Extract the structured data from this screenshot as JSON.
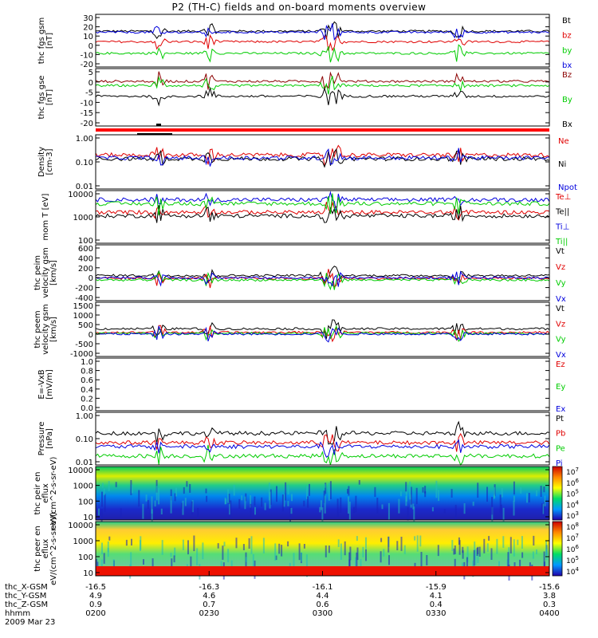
{
  "title": "P2 (TH-C) fields and on-board moments overview",
  "date_label": "2009 Mar 23",
  "colors": {
    "black": "#000000",
    "red": "#e00000",
    "green": "#00cc00",
    "blue": "#0000dd",
    "darkred": "#8b0000"
  },
  "footer": {
    "row_labels": [
      "thc_X-GSM",
      "thc_Y-GSM",
      "thc_Z-GSM",
      "hhmm"
    ],
    "x_gsm": [
      "-16.5",
      "-16.3",
      "-16.1",
      "-15.9",
      "-15.6"
    ],
    "y_gsm": [
      "4.9",
      "4.6",
      "4.4",
      "4.1",
      "3.8"
    ],
    "z_gsm": [
      "0.9",
      "0.7",
      "0.6",
      "0.4",
      "0.3"
    ],
    "hhmm": [
      "0200",
      "0230",
      "0300",
      "0330",
      "0400"
    ]
  },
  "chart_data": [
    {
      "type": "line",
      "ylabel": "thc fgs gsm [nT]",
      "ytick_labels": [
        "30",
        "20",
        "10",
        "0",
        "-10",
        "-20"
      ],
      "ylim": [
        -20,
        30
      ],
      "series": [
        {
          "name": "Bt",
          "color": "#000000",
          "level": 14
        },
        {
          "name": "bz",
          "color": "#e00000",
          "level": 4
        },
        {
          "name": "by",
          "color": "#00cc00",
          "level": -7
        },
        {
          "name": "bx",
          "color": "#0000dd",
          "level": 13
        }
      ]
    },
    {
      "type": "line",
      "ylabel": "thc fgs gse [nT]",
      "ytick_labels": [
        "5",
        "0",
        "-5",
        "-10",
        "-15",
        "-20"
      ],
      "ylim": [
        -22,
        5
      ],
      "series": [
        {
          "name": "Bz",
          "color": "#8b0000",
          "level": -1
        },
        {
          "name": "By",
          "color": "#00cc00",
          "level": -3
        },
        {
          "name": "Bx",
          "color": "#000000",
          "level": -8
        }
      ]
    },
    {
      "type": "line",
      "ylabel": "Density [cm-3]",
      "log": true,
      "ytick_labels": [
        "1.00",
        "0.10",
        "0.01"
      ],
      "ylim": [
        0.01,
        1.0
      ],
      "series": [
        {
          "name": "Ne",
          "color": "#e00000",
          "level": 0.18
        },
        {
          "name": "Ni",
          "color": "#000000",
          "level": 0.13
        },
        {
          "name": "Npot",
          "color": "#0000dd",
          "level": 0.14
        }
      ]
    },
    {
      "type": "line",
      "ylabel": "mom T [eV]",
      "log": true,
      "ytick_labels": [
        "10000",
        "1000",
        "100"
      ],
      "ylim": [
        100,
        10000
      ],
      "series": [
        {
          "name": "Te⊥",
          "color": "#e00000",
          "level": 1500
        },
        {
          "name": "Te||",
          "color": "#000000",
          "level": 1100
        },
        {
          "name": "Ti⊥",
          "color": "#0000dd",
          "level": 4500
        },
        {
          "name": "Ti||",
          "color": "#00cc00",
          "level": 3200
        }
      ]
    },
    {
      "type": "line",
      "ylabel": "thc peim velocity gsm [km/s]",
      "ytick_labels": [
        "600",
        "400",
        "200",
        "0",
        "-200",
        "-400"
      ],
      "ylim": [
        -400,
        600
      ],
      "series": [
        {
          "name": "Vt",
          "color": "#000000",
          "level": 50
        },
        {
          "name": "Vz",
          "color": "#e00000",
          "level": 0
        },
        {
          "name": "Vy",
          "color": "#00cc00",
          "level": -30
        },
        {
          "name": "Vx",
          "color": "#0000dd",
          "level": 10
        }
      ]
    },
    {
      "type": "line",
      "ylabel": "thc peem velocity gsm [km/s]",
      "ytick_labels": [
        "1500",
        "1000",
        "500",
        "0",
        "-500",
        "-1000"
      ],
      "ylim": [
        -1200,
        1500
      ],
      "series": [
        {
          "name": "Vt",
          "color": "#000000",
          "level": 180
        },
        {
          "name": "Vz",
          "color": "#e00000",
          "level": 0
        },
        {
          "name": "Vy",
          "color": "#00cc00",
          "level": -50
        },
        {
          "name": "Vx",
          "color": "#0000dd",
          "level": -80
        }
      ]
    },
    {
      "type": "line",
      "ylabel": "E=-VxB [mV/m]",
      "ytick_labels": [
        "1.0",
        "0.8",
        "0.6",
        "0.4",
        "0.2",
        "0.0"
      ],
      "ylim": [
        0,
        1
      ],
      "series": [
        {
          "name": "Ez",
          "color": "#e00000"
        },
        {
          "name": "Ey",
          "color": "#00cc00"
        },
        {
          "name": "Ex",
          "color": "#0000dd"
        }
      ]
    },
    {
      "type": "line",
      "ylabel": "Pressure [nPa]",
      "log": true,
      "ytick_labels": [
        "1.00",
        "0.10",
        "0.01"
      ],
      "ylim": [
        0.01,
        1.0
      ],
      "series": [
        {
          "name": "Pt",
          "color": "#000000",
          "level": 0.16
        },
        {
          "name": "Pb",
          "color": "#e00000",
          "level": 0.07
        },
        {
          "name": "Pe",
          "color": "#00cc00",
          "level": 0.022
        },
        {
          "name": "Pi",
          "color": "#0000dd",
          "level": 0.05
        }
      ]
    },
    {
      "type": "heatmap",
      "ylabel": "thc peir en eflux eV/(cm^2-s-sr-eV)",
      "log": true,
      "ytick_labels": [
        "10000",
        "1000",
        "100",
        "10"
      ],
      "ylim": [
        10,
        20000
      ],
      "colorbar_labels": [
        "10^7",
        "10^6",
        "10^5",
        "10^4",
        "10^3"
      ],
      "colorbar_range": [
        1000,
        10000000
      ]
    },
    {
      "type": "heatmap",
      "ylabel": "thc peer en eflux eV/(cm^2-s-sr-eV)",
      "log": true,
      "ytick_labels": [
        "10000",
        "1000",
        "100",
        "10"
      ],
      "ylim": [
        8,
        20000
      ],
      "colorbar_labels": [
        "10^8",
        "10^7",
        "10^6",
        "10^5",
        "10^4"
      ],
      "colorbar_range": [
        10000,
        100000000
      ]
    }
  ]
}
